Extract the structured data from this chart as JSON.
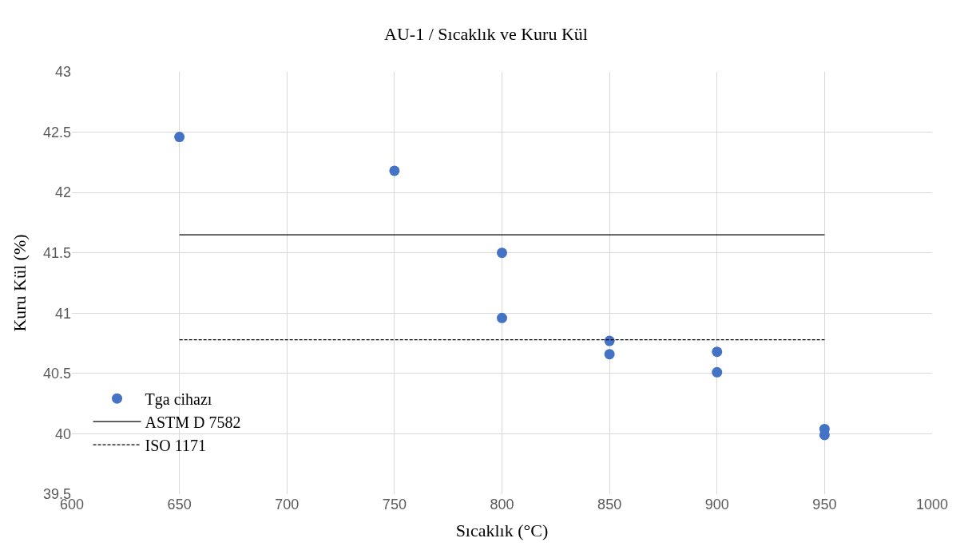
{
  "chart_data": {
    "type": "scatter",
    "title": "AU-1 / Sıcaklık ve Kuru Kül",
    "xlabel": "Sıcaklık (°C)",
    "ylabel": "Kuru Kül (%)",
    "xlim": [
      600,
      1000
    ],
    "xticks": [
      600,
      650,
      700,
      750,
      800,
      850,
      900,
      950,
      1000
    ],
    "ylim": [
      39.5,
      43
    ],
    "yticks": [
      39.5,
      40,
      40.5,
      41,
      41.5,
      42,
      42.5,
      43
    ],
    "grid": true,
    "legend": "bottom left",
    "marker": "circle",
    "series": [
      {
        "name": "Tga cihazı",
        "color": "#4472c4",
        "x": [
          650,
          750,
          800,
          800,
          850,
          850,
          900,
          900,
          950,
          950
        ],
        "values": [
          42.46,
          42.18,
          41.5,
          40.96,
          40.77,
          40.66,
          40.68,
          40.51,
          40.04,
          39.99
        ]
      },
      {
        "name": "ASTM D 7582",
        "type": "line",
        "color": "#000000",
        "line_style": "solid",
        "marker": "none",
        "x": [
          650,
          950
        ],
        "values": [
          41.65,
          41.65
        ]
      },
      {
        "name": "ISO 1171",
        "type": "line",
        "color": "#000000",
        "line_style": "dashed",
        "marker": "none",
        "x": [
          650,
          950
        ],
        "values": [
          40.78,
          40.78
        ]
      }
    ]
  }
}
